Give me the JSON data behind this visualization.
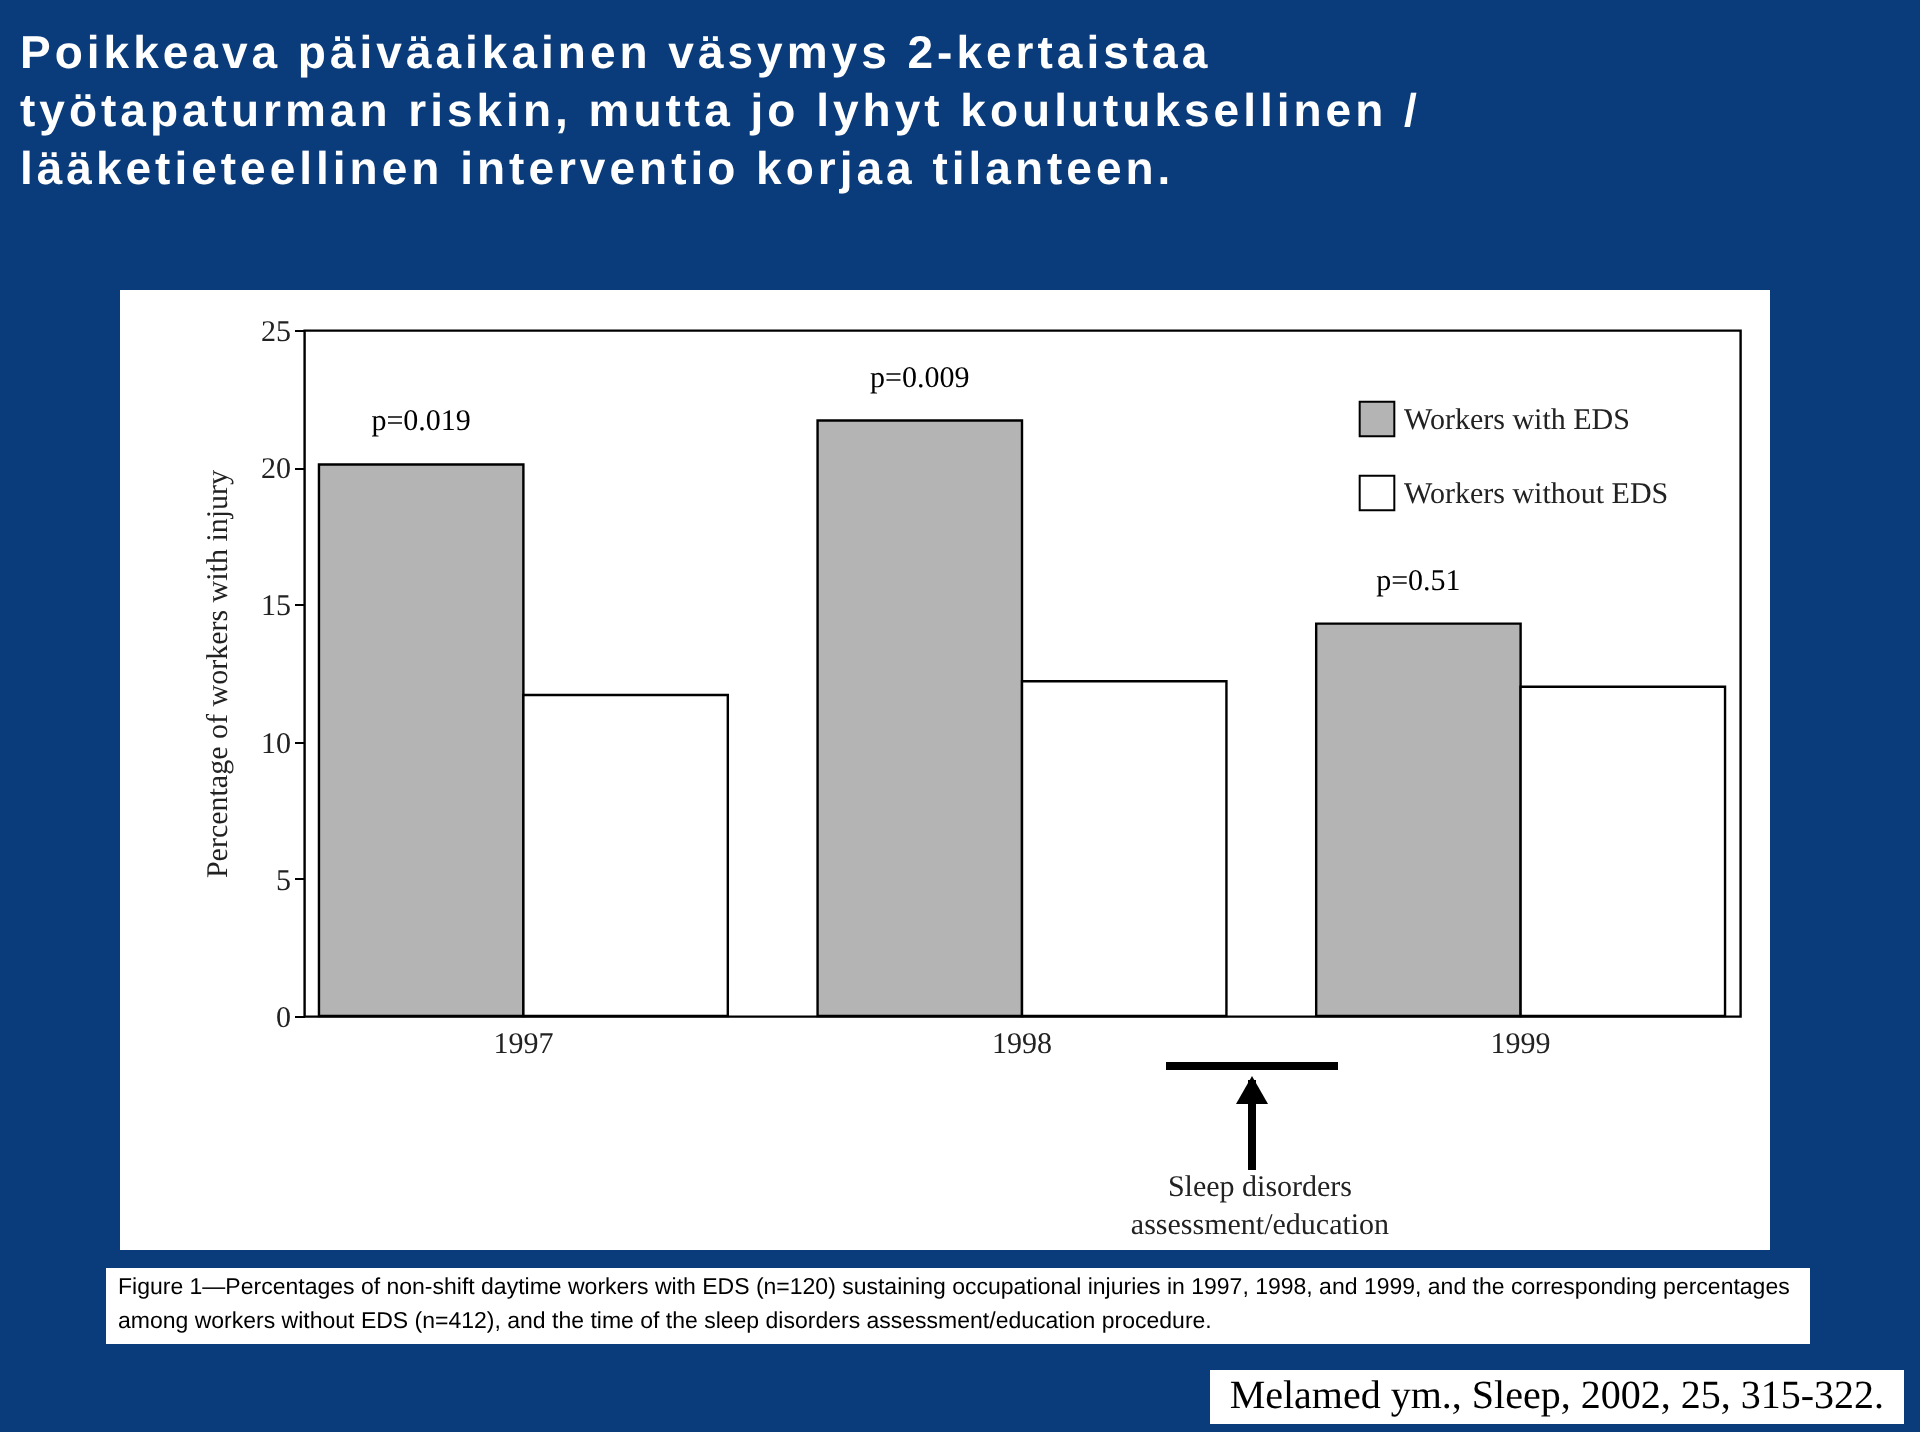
{
  "chart_data": {
    "type": "bar",
    "title": "Poikkeava päiväaikainen väsymys 2-kertaistaa työtapaturman riskin, mutta jo lyhyt koulutuksellinen / lääketieteellinen interventio korjaa tilanteen.",
    "ylabel": "Percentage of workers with injury",
    "categories": [
      "1997",
      "1998",
      "1999"
    ],
    "series": [
      {
        "name": "Workers with EDS",
        "color": "#b4b4b4",
        "values": [
          20.1,
          21.7,
          14.3
        ]
      },
      {
        "name": "Workers without EDS",
        "color": "#ffffff",
        "values": [
          11.7,
          12.2,
          12.0
        ]
      }
    ],
    "ylim": [
      0,
      25
    ],
    "yticks": [
      0,
      5,
      10,
      15,
      20,
      25
    ],
    "grid": false,
    "legend": "top right",
    "annotations": [
      "p=0.019",
      "p=0.009",
      "p=0.51",
      "Sleep disorders assessment/education",
      "Figure 1—Percentages of non-shift daytime workers with EDS (n=120) sustaining occupational injuries in 1997, 1998, and 1999, and the corresponding percentages among workers without EDS (n=412), and the time of the sleep disorders assessment/education procedure.",
      "Melamed ym., Sleep, 2002, 25, 315-322."
    ]
  }
}
